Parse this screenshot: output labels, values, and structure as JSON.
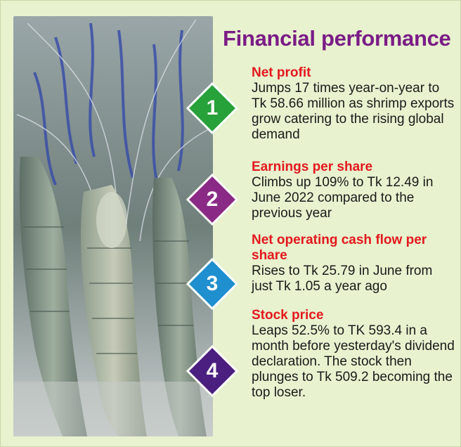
{
  "title": "Financial performance",
  "items": [
    {
      "number": "1",
      "color": "#27a13a",
      "heading": "Net profit",
      "body": "Jumps 17 times year-on-year to Tk 58.66 million as shrimp exports grow catering to the rising global demand"
    },
    {
      "number": "2",
      "color": "#8a2a86",
      "heading": "Earnings per share",
      "body": "Climbs up 109% to Tk 12.49 in June 2022 compared to the previous year"
    },
    {
      "number": "3",
      "color": "#1f8fd0",
      "heading": "Net operating cash flow per share",
      "body": "Rises to Tk 25.79 in June from just Tk 1.05 a year ago"
    },
    {
      "number": "4",
      "color": "#4b1f80",
      "heading": "Stock price",
      "body": "Leaps 52.5% to TK 593.4 in a month before yesterday's dividend declaration. The stock then plunges to Tk 509.2 becoming the top loser."
    }
  ],
  "colors": {
    "background": "#e8f2cf",
    "title": "#7a1c86",
    "heading": "#e3181c"
  }
}
